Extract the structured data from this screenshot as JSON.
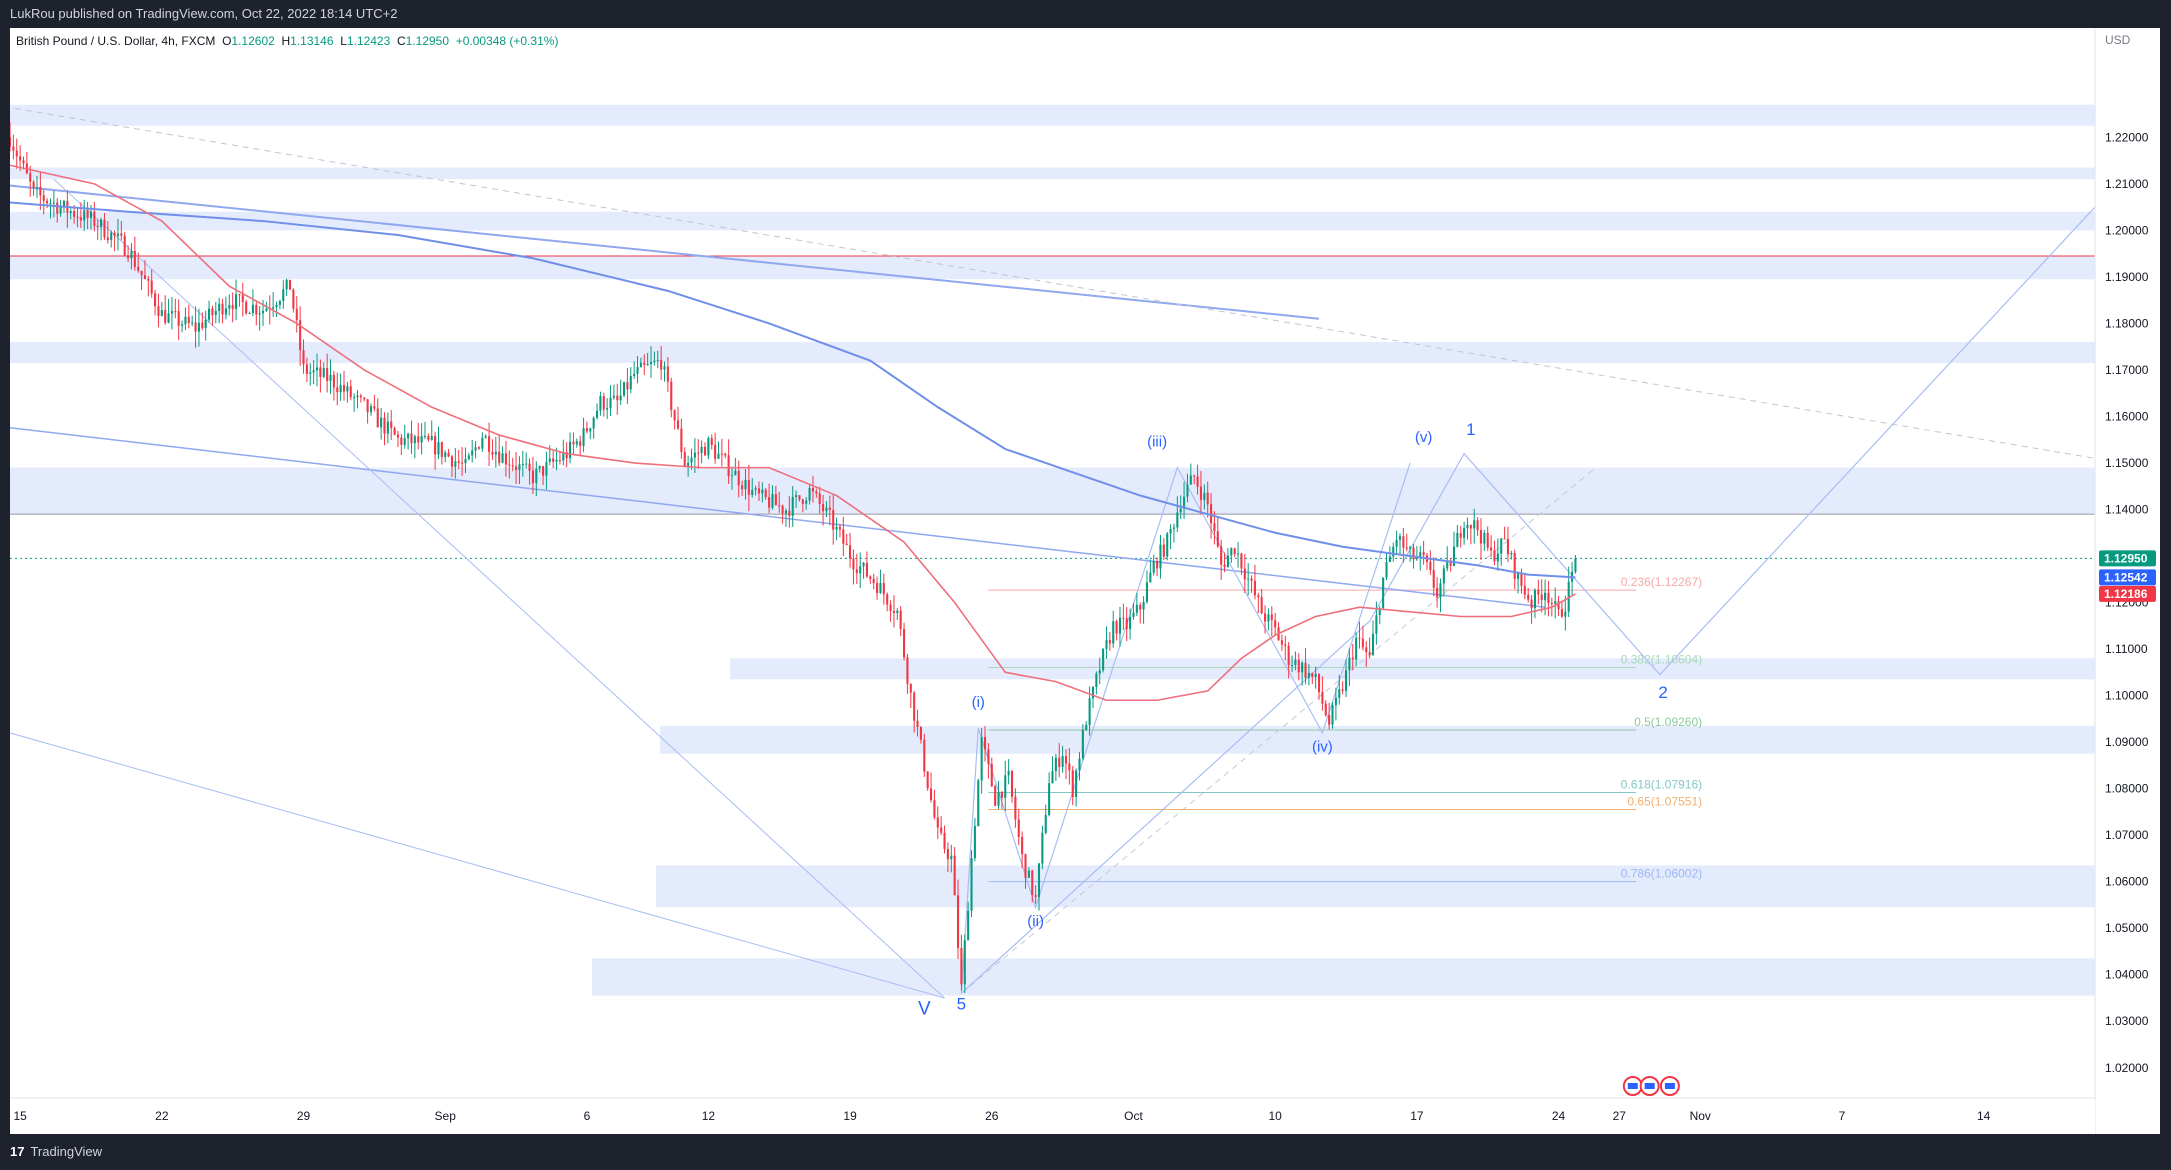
{
  "header": {
    "published": "LukRou published on TradingView.com, Oct 22, 2022 18:14 UTC+2"
  },
  "legend": {
    "symbol": "British Pound / U.S. Dollar, 4h, FXCM",
    "o_label": "O",
    "o_value": "1.12602",
    "h_label": "H",
    "h_value": "1.13146",
    "l_label": "L",
    "l_value": "1.12423",
    "c_label": "C",
    "c_value": "1.12950",
    "change": "+0.00348 (+0.31%)"
  },
  "footer": {
    "logo_mark": "17",
    "brand": "TradingView"
  },
  "colors": {
    "up": "#089981",
    "down": "#f23645",
    "zone": "#e3ebfd",
    "ema_fast": "#ef6f7c",
    "ma_slow": "#6f8fe8",
    "trend": "#a8bdf3",
    "wave_label": "#2962ff",
    "price_badge": "#089981",
    "ma_badge": "#2962ff",
    "ema_badge": "#f23645"
  },
  "chart_data": {
    "type": "candlestick",
    "instrument": "British Pound / U.S. Dollar",
    "timeframe": "4h",
    "y_unit": "USD",
    "ylim": [
      1.0135,
      1.2435
    ],
    "y_ticks": [
      "1.22000",
      "1.21000",
      "1.20000",
      "1.19000",
      "1.18000",
      "1.17000",
      "1.16000",
      "1.15000",
      "1.14000",
      "1.13000",
      "1.12000",
      "1.11000",
      "1.10000",
      "1.09000",
      "1.08000",
      "1.07000",
      "1.06000",
      "1.05000",
      "1.04000",
      "1.03000",
      "1.02000"
    ],
    "x_ticks": [
      {
        "label": "15",
        "idx": 8
      },
      {
        "label": "22",
        "idx": 50
      },
      {
        "label": "29",
        "idx": 92
      },
      {
        "label": "Sep",
        "idx": 134
      },
      {
        "label": "6",
        "idx": 176
      },
      {
        "label": "12",
        "idx": 212
      },
      {
        "label": "19",
        "idx": 254
      },
      {
        "label": "26",
        "idx": 296
      },
      {
        "label": "Oct",
        "idx": 338
      },
      {
        "label": "10",
        "idx": 380
      },
      {
        "label": "17",
        "idx": 422
      },
      {
        "label": "24",
        "idx": 464
      },
      {
        "label": "27",
        "idx": 482
      },
      {
        "label": "Nov",
        "idx": 506
      },
      {
        "label": "7",
        "idx": 548
      },
      {
        "label": "14",
        "idx": 590
      }
    ],
    "x_range": [
      5,
      623
    ],
    "price_badges": [
      {
        "label": "1.12950",
        "value": 1.1295,
        "type": "price"
      },
      {
        "label": "1.12542",
        "value": 1.12542,
        "type": "ma"
      },
      {
        "label": "1.12186",
        "value": 1.12186,
        "type": "ema"
      }
    ],
    "last_close": 1.1295,
    "anchors": [
      [
        5,
        1.22
      ],
      [
        12,
        1.208
      ],
      [
        20,
        1.205
      ],
      [
        30,
        1.202
      ],
      [
        40,
        1.196
      ],
      [
        50,
        1.182
      ],
      [
        60,
        1.179
      ],
      [
        70,
        1.185
      ],
      [
        80,
        1.183
      ],
      [
        88,
        1.188
      ],
      [
        92,
        1.17
      ],
      [
        100,
        1.168
      ],
      [
        110,
        1.162
      ],
      [
        120,
        1.155
      ],
      [
        130,
        1.154
      ],
      [
        140,
        1.149
      ],
      [
        145,
        1.156
      ],
      [
        150,
        1.152
      ],
      [
        160,
        1.147
      ],
      [
        170,
        1.152
      ],
      [
        175,
        1.156
      ],
      [
        180,
        1.163
      ],
      [
        185,
        1.163
      ],
      [
        190,
        1.169
      ],
      [
        198,
        1.172
      ],
      [
        205,
        1.15
      ],
      [
        212,
        1.154
      ],
      [
        218,
        1.149
      ],
      [
        226,
        1.143
      ],
      [
        235,
        1.14
      ],
      [
        242,
        1.144
      ],
      [
        248,
        1.138
      ],
      [
        255,
        1.129
      ],
      [
        262,
        1.124
      ],
      [
        268,
        1.118
      ],
      [
        272,
        1.1
      ],
      [
        276,
        1.085
      ],
      [
        280,
        1.07
      ],
      [
        284,
        1.065
      ],
      [
        287,
        1.037
      ],
      [
        290,
        1.065
      ],
      [
        293,
        1.09
      ],
      [
        297,
        1.078
      ],
      [
        301,
        1.082
      ],
      [
        305,
        1.065
      ],
      [
        309,
        1.056
      ],
      [
        313,
        1.082
      ],
      [
        317,
        1.088
      ],
      [
        320,
        1.08
      ],
      [
        324,
        1.095
      ],
      [
        328,
        1.106
      ],
      [
        332,
        1.115
      ],
      [
        336,
        1.115
      ],
      [
        340,
        1.119
      ],
      [
        344,
        1.128
      ],
      [
        348,
        1.133
      ],
      [
        352,
        1.142
      ],
      [
        356,
        1.147
      ],
      [
        360,
        1.141
      ],
      [
        364,
        1.128
      ],
      [
        368,
        1.132
      ],
      [
        372,
        1.125
      ],
      [
        376,
        1.118
      ],
      [
        380,
        1.114
      ],
      [
        384,
        1.108
      ],
      [
        388,
        1.106
      ],
      [
        392,
        1.103
      ],
      [
        396,
        1.094
      ],
      [
        400,
        1.102
      ],
      [
        404,
        1.112
      ],
      [
        408,
        1.108
      ],
      [
        412,
        1.125
      ],
      [
        416,
        1.134
      ],
      [
        420,
        1.13
      ],
      [
        424,
        1.129
      ],
      [
        428,
        1.122
      ],
      [
        432,
        1.129
      ],
      [
        436,
        1.138
      ],
      [
        440,
        1.136
      ],
      [
        444,
        1.13
      ],
      [
        448,
        1.133
      ],
      [
        452,
        1.125
      ],
      [
        456,
        1.12
      ],
      [
        460,
        1.123
      ],
      [
        464,
        1.117
      ],
      [
        466,
        1.12
      ],
      [
        469,
        1.129
      ]
    ],
    "ema_points": [
      [
        5,
        1.214
      ],
      [
        30,
        1.21
      ],
      [
        50,
        1.202
      ],
      [
        70,
        1.188
      ],
      [
        90,
        1.18
      ],
      [
        110,
        1.17
      ],
      [
        130,
        1.162
      ],
      [
        150,
        1.156
      ],
      [
        170,
        1.152
      ],
      [
        190,
        1.15
      ],
      [
        210,
        1.149
      ],
      [
        230,
        1.149
      ],
      [
        250,
        1.143
      ],
      [
        270,
        1.133
      ],
      [
        285,
        1.12
      ],
      [
        300,
        1.105
      ],
      [
        315,
        1.103
      ],
      [
        330,
        1.099
      ],
      [
        345,
        1.099
      ],
      [
        360,
        1.101
      ],
      [
        370,
        1.108
      ],
      [
        380,
        1.113
      ],
      [
        392,
        1.117
      ],
      [
        405,
        1.119
      ],
      [
        420,
        1.118
      ],
      [
        435,
        1.117
      ],
      [
        450,
        1.117
      ],
      [
        462,
        1.119
      ],
      [
        469,
        1.12186
      ]
    ],
    "ma_points": [
      [
        5,
        1.206
      ],
      [
        40,
        1.204
      ],
      [
        80,
        1.202
      ],
      [
        120,
        1.199
      ],
      [
        160,
        1.194
      ],
      [
        200,
        1.187
      ],
      [
        230,
        1.18
      ],
      [
        260,
        1.172
      ],
      [
        280,
        1.162
      ],
      [
        300,
        1.153
      ],
      [
        320,
        1.148
      ],
      [
        340,
        1.143
      ],
      [
        360,
        1.139
      ],
      [
        380,
        1.135
      ],
      [
        400,
        1.132
      ],
      [
        420,
        1.13
      ],
      [
        440,
        1.128
      ],
      [
        455,
        1.126
      ],
      [
        469,
        1.12542
      ]
    ],
    "zones": [
      [
        1.2225,
        1.227
      ],
      [
        1.211,
        1.2135
      ],
      [
        1.2,
        1.204
      ],
      [
        1.1895,
        1.1945
      ],
      [
        1.1715,
        1.176
      ],
      [
        1.139,
        1.149
      ],
      [
        1.1035,
        1.108
      ],
      [
        1.0875,
        1.0935
      ],
      [
        1.0545,
        1.0635
      ],
      [
        1.0355,
        1.0435
      ]
    ],
    "zone_spans": [
      [
        0,
        2150
      ],
      [
        0,
        2150
      ],
      [
        0,
        2150
      ],
      [
        0,
        2150
      ],
      [
        0,
        2150
      ],
      [
        0,
        2150
      ],
      [
        720,
        2150
      ],
      [
        650,
        2150
      ],
      [
        646,
        2150
      ],
      [
        582,
        2150
      ]
    ],
    "horizontal_lines": [
      {
        "value": 1.1945,
        "color": "#f23645",
        "dash": false
      },
      {
        "value": 1.139,
        "color": "#9598a1",
        "dash": false
      },
      {
        "value": 1.1295,
        "color": "#089981",
        "dash": true
      }
    ],
    "fib_levels": [
      {
        "ratio": "0.236",
        "price": "1.12267",
        "value": 1.12267,
        "color": "#f7a8a8"
      },
      {
        "ratio": "0.382",
        "price": "1.10604",
        "value": 1.10604,
        "color": "#a9d8b8"
      },
      {
        "ratio": "0.5",
        "price": "1.09260",
        "value": 1.0926,
        "color": "#8fc99a"
      },
      {
        "ratio": "0.618",
        "price": "1.07916",
        "value": 1.07916,
        "color": "#85c7c7"
      },
      {
        "ratio": "0.65",
        "price": "1.07551",
        "value": 1.07551,
        "color": "#f0b070"
      },
      {
        "ratio": "0.786",
        "price": "1.06002",
        "value": 1.06002,
        "color": "#9db8f0"
      }
    ],
    "trend_lines": [
      {
        "from": [
          0,
          1.21
        ],
        "to": [
          393,
          1.181
        ],
        "color": "#8fa8f0",
        "width": 2,
        "dash": false
      },
      {
        "from": [
          0,
          1.227
        ],
        "to": [
          623,
          1.151
        ],
        "color": "#bfc5d2",
        "width": 1,
        "dash": true
      },
      {
        "from": [
          0,
          1.158
        ],
        "to": [
          460,
          1.119
        ],
        "color": "#8fa8f0",
        "width": 1.5,
        "dash": false
      },
      {
        "from": [
          0,
          1.093
        ],
        "to": [
          282,
          1.035
        ],
        "color": "#a8bdf3",
        "width": 1,
        "dash": false
      },
      {
        "from": [
          18,
          1.211
        ],
        "to": [
          282,
          1.035
        ],
        "color": "#a8bdf3",
        "width": 1,
        "dash": false
      },
      {
        "from": [
          287,
          1.036
        ],
        "to": [
          475,
          1.149
        ],
        "color": "#c6cad3",
        "width": 1,
        "dash": true
      }
    ],
    "wave_paths": [
      [
        [
          287,
          1.036
        ],
        [
          292,
          1.093
        ],
        [
          309,
          1.0545
        ],
        [
          351,
          1.149
        ],
        [
          394,
          1.092
        ],
        [
          420,
          1.15
        ]
      ],
      [
        [
          287,
          1.036
        ],
        [
          408,
          1.116
        ],
        [
          436,
          1.152
        ],
        [
          494,
          1.1045
        ],
        [
          623,
          1.205
        ]
      ]
    ],
    "wave_labels": [
      {
        "text": "(i)",
        "x": 292,
        "y": 1.0975,
        "size": 15
      },
      {
        "text": "(ii)",
        "x": 309,
        "y": 1.0505,
        "size": 15
      },
      {
        "text": "(iii)",
        "x": 345,
        "y": 1.1535,
        "size": 15
      },
      {
        "text": "(iv)",
        "x": 394,
        "y": 1.088,
        "size": 15
      },
      {
        "text": "(v)",
        "x": 424,
        "y": 1.1545,
        "size": 15
      },
      {
        "text": "1",
        "x": 438,
        "y": 1.156,
        "size": 17
      },
      {
        "text": "2",
        "x": 495,
        "y": 1.0995,
        "size": 17
      },
      {
        "text": "5",
        "x": 287,
        "y": 1.0325,
        "size": 17
      },
      {
        "text": "V",
        "x": 276,
        "y": 1.0315,
        "size": 19
      }
    ]
  }
}
